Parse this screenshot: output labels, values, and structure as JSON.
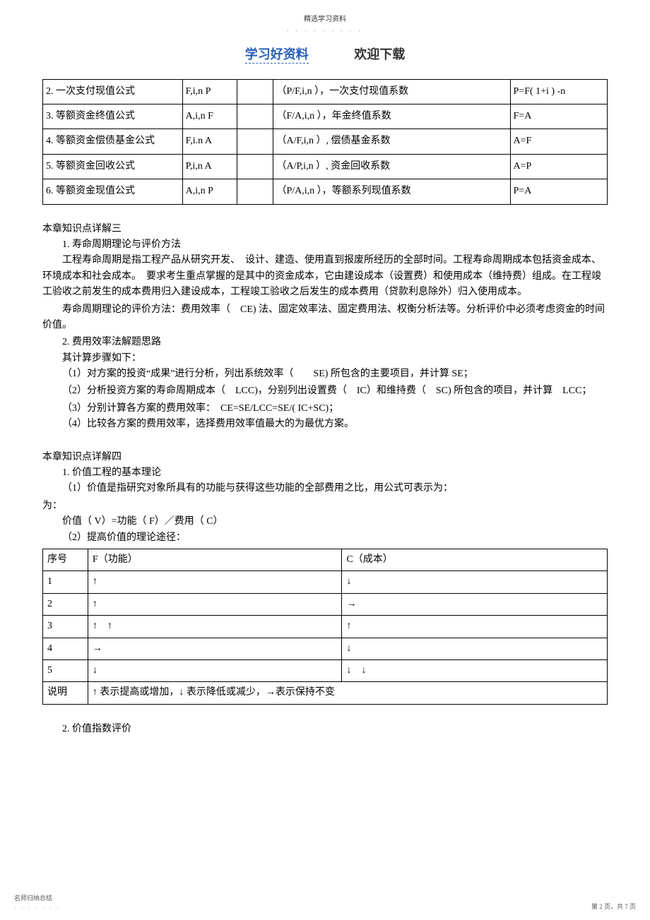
{
  "top_small": "精选学习资料",
  "top_dots": "- - - - - - - - -",
  "header_left": "学习好资料",
  "header_right": "欢迎下载",
  "formulas_table": {
    "rows": [
      {
        "name": "2. 一次支付现值公式",
        "known": "F,i,n P",
        "eq": " ",
        "factor": "（P/F,i,n ），一次支付现值系数",
        "formula": "P=F( 1+i ) -n"
      },
      {
        "name": "3. 等额资金终值公式",
        "known": "A,i,n F",
        "eq": " ",
        "factor": "（F/A,i,n ），年金终值系数",
        "formula": "F=A"
      },
      {
        "name": "4. 等额资金偿债基金公式",
        "known": "F,i.n A",
        "eq": " ",
        "factor": "（A/F,i,n ）, 偿债基金系数",
        "formula": "A=F"
      },
      {
        "name": "5. 等额资金回收公式",
        "known": "P,i,n A",
        "eq": " ",
        "factor": "（A/P,i,n ）, 资金回收系数",
        "formula": "A=P"
      },
      {
        "name": "6. 等额资金现值公式",
        "known": "A,i,n P",
        "eq": " ",
        "factor": "（P/A,i,n ），等额系列现值系数",
        "formula": "P=A"
      }
    ]
  },
  "sec3": {
    "title": "本章知识点详解三",
    "h1": "1. 寿命周期理论与评价方法",
    "p1": "工程寿命周期是指工程产品从研究开发、　设计、建造、使用直到报废所经历的全部时间。工程寿命周期成本包括资金成本、　环境成本和社会成本。　要求考生重点掌握的是其中的资金成本，它由建设成本（设置费）和使用成本（维持费）组成。在工程竣工验收之前发生的成本费用归入建设成本，工程竣工验收之后发生的成本费用（贷款利息除外）归入使用成本。",
    "p2": "寿命周期理论的评价方法：费用效率（　CE) 法、固定效率法、固定费用法、权衡分析法等。分析评价中必须考虑资金的时间价值。",
    "h2": "2. 费用效率法解题思路",
    "p3": "其计算步骤如下：",
    "p4": "（1）对方案的投资“成果”进行分析，列出系统效率（　　SE) 所包含的主要项目，并计算 SE；",
    "p5": "（2）分析投资方案的寿命周期成本（　LCC)，分别列出设置费（　IC）和维持费（　SC) 所包含的项目，并计算　LCC；",
    "p6": "（3）分别计算各方案的费用效率：　CE=SE/LCC=SE/( IC+SC)；",
    "p7": "（4）比较各方案的费用效率，选择费用效率值最大的为最优方案。"
  },
  "sec4": {
    "title": "本章知识点详解四",
    "h1": "1. 价值工程的基本理论",
    "p1": "（1）价值是指研究对象所具有的功能与获得这些功能的全部费用之比，用公式可表示为：",
    "p2": "价值（ V）=功能（ F）／费用（ C）",
    "p3": "（2）提高价值的理论途径：",
    "table_header": {
      "seq": "序号",
      "f": "F（功能）",
      "c": "C（成本）"
    },
    "table_rows": [
      {
        "seq": "1",
        "f": "↑",
        "c": "↓"
      },
      {
        "seq": "2",
        "f": "↑",
        "c": "→"
      },
      {
        "seq": "3",
        "f": "↑　↑",
        "c": "↑"
      },
      {
        "seq": "4",
        "f": "→",
        "c": "↓"
      },
      {
        "seq": "5",
        "f": "↓",
        "c": "↓　↓"
      }
    ],
    "table_note_label": "说明",
    "table_note": "↑ 表示提高或增加，↓ 表示降低或减少，→表示保持不变",
    "h2": "2. 价值指数评价"
  },
  "footer_left": "名师归纳总结",
  "footer_dots": "- - - - - - -",
  "footer_right": "第 2 页，共 7 页"
}
